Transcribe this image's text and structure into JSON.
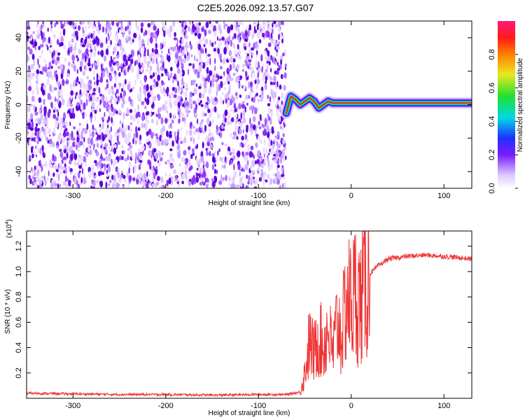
{
  "title": "C2E5.2026.092.13.57.G07",
  "chart_data": [
    {
      "type": "heatmap",
      "xlabel": "Height of straight line (km)",
      "ylabel": "Frequency (Hz)",
      "xlim": [
        -350,
        130
      ],
      "ylim": [
        -50,
        50
      ],
      "x_ticks": [
        "-300",
        "-200",
        "-100",
        "0",
        "100"
      ],
      "x_tick_values": [
        -300,
        -200,
        -100,
        0,
        100
      ],
      "y_ticks": [
        "40",
        "20",
        "0",
        "-20",
        "-40"
      ],
      "y_tick_values": [
        40,
        20,
        0,
        -20,
        -40
      ],
      "noise_region_x": [
        -350,
        -75
      ],
      "signal_track": {
        "x": [
          -70,
          -65,
          -60,
          -55,
          -50,
          -45,
          -40,
          -35,
          -30,
          -25,
          -20,
          -10,
          0,
          10,
          20,
          40,
          60,
          80,
          100,
          130
        ],
        "y": [
          -5,
          5,
          3,
          0,
          2,
          4,
          2,
          -2,
          0,
          2,
          1,
          1,
          1,
          1,
          1,
          1,
          1,
          1,
          1,
          1
        ]
      },
      "colorbar": {
        "label": "Normalized spectral amplitude",
        "range": [
          0,
          1
        ],
        "ticks": [
          "0.0",
          "0.2",
          "0.4",
          "0.6",
          "0.8"
        ],
        "tick_values": [
          0.0,
          0.2,
          0.4,
          0.6,
          0.8
        ]
      }
    },
    {
      "type": "line",
      "xlabel": "Height of straight line (km)",
      "ylabel": "SNR (10 * v/v)",
      "scale_label": "(x10",
      "scale_exp": "4",
      "xlim": [
        -350,
        130
      ],
      "ylim": [
        0,
        1.32
      ],
      "x_ticks": [
        "-300",
        "-200",
        "-100",
        "0",
        "100"
      ],
      "x_tick_values": [
        -300,
        -200,
        -100,
        0,
        100
      ],
      "y_ticks": [
        "1.2",
        "1.0",
        "0.8",
        "0.6",
        "0.4",
        "0.2"
      ],
      "y_tick_values": [
        1.2,
        1.0,
        0.8,
        0.6,
        0.4,
        0.2
      ],
      "color": "#ee3333",
      "series": [
        {
          "x": [
            -350,
            -300,
            -250,
            -200,
            -150,
            -100,
            -70,
            -55,
            -50,
            -45,
            -40,
            -35,
            -30,
            -25,
            -20,
            -15,
            -10,
            -5,
            0,
            5,
            10,
            15,
            20,
            30,
            40,
            60,
            80,
            100,
            130
          ],
          "y": [
            0.04,
            0.035,
            0.03,
            0.03,
            0.025,
            0.03,
            0.03,
            0.05,
            0.2,
            0.45,
            0.35,
            0.5,
            0.4,
            0.55,
            0.35,
            0.6,
            0.5,
            0.8,
            0.75,
            0.85,
            0.75,
            0.9,
            0.98,
            1.05,
            1.1,
            1.12,
            1.13,
            1.12,
            1.1
          ]
        }
      ]
    }
  ]
}
